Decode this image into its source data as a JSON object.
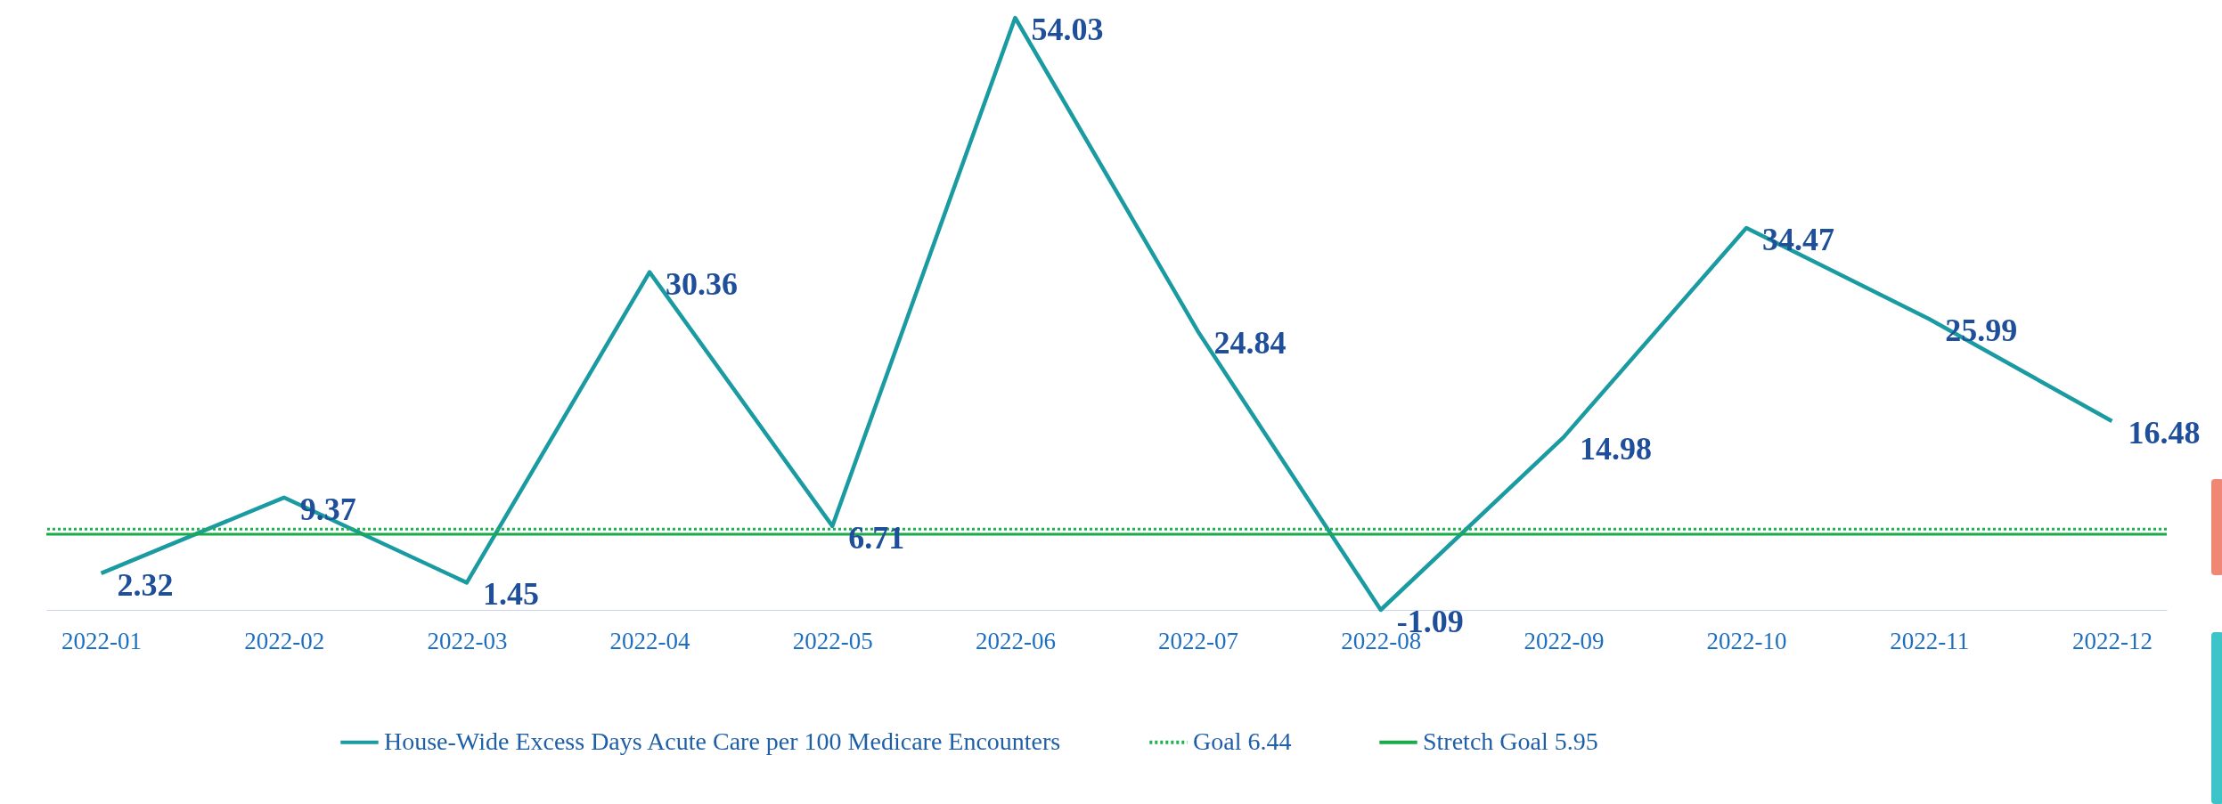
{
  "chart_data": {
    "type": "line",
    "categories": [
      "2022-01",
      "2022-02",
      "2022-03",
      "2022-04",
      "2022-05",
      "2022-06",
      "2022-07",
      "2022-08",
      "2022-09",
      "2022-10",
      "2022-11",
      "2022-12"
    ],
    "series": [
      {
        "name": "House-Wide Excess Days Acute Care per 100 Medicare Encounters",
        "color": "#1a9ba1",
        "values": [
          2.32,
          9.37,
          1.45,
          30.36,
          6.71,
          54.03,
          24.84,
          -1.09,
          14.98,
          34.47,
          25.99,
          16.48
        ]
      }
    ],
    "ref_lines": [
      {
        "axis": "y",
        "value": 6.44,
        "label": "Goal 6.44",
        "color": "#22b050",
        "line_style": "dotted"
      },
      {
        "axis": "y",
        "value": 5.95,
        "label": "Stretch Goal 5.95",
        "color": "#1aaa4a",
        "line_style": "solid"
      }
    ],
    "data_labels": true,
    "grid": false,
    "legend": "bottom",
    "tick_labels": "x",
    "marker": "none",
    "line_style": "solid"
  }
}
